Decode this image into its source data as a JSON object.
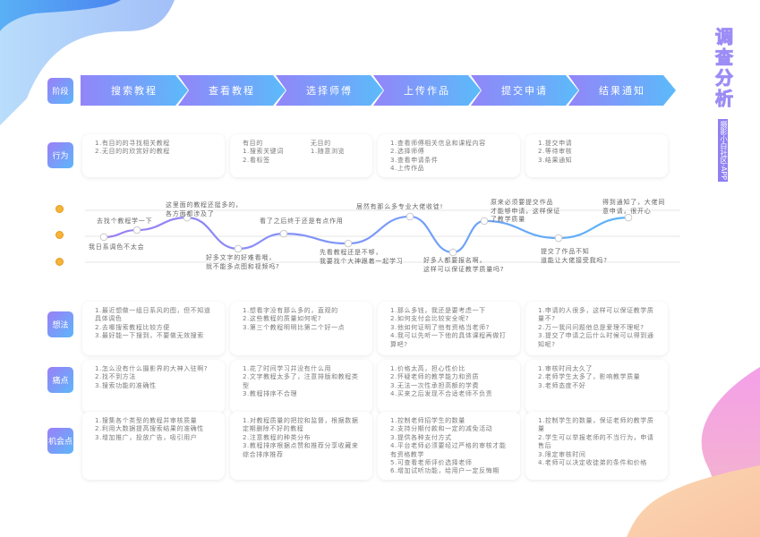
{
  "title": {
    "main": "调查分析",
    "sub": "摄影小白社区-APP"
  },
  "row_labels": {
    "stage": "阶段",
    "behavior": "行为",
    "thoughts": "想法",
    "pain": "痛点",
    "opportunity": "机会点"
  },
  "stages": [
    "搜索教程",
    "查看教程",
    "选择师傅",
    "上传作品",
    "提交申请",
    "结果通知"
  ],
  "behavior": [
    {
      "items": [
        "1.有目的的寻找相关教程",
        "2.无目的的欣赏好的教程"
      ]
    },
    {
      "columns": [
        {
          "items": [
            "有目的",
            "1.搜索关键词",
            "2.看标签"
          ]
        },
        {
          "items": [
            "无目的",
            "1.随意浏览"
          ]
        }
      ]
    },
    {
      "items": [
        "1.查看师傅相关信息和课程内容",
        "2.选择师傅",
        "3.查看申请条件",
        "4.上传作品"
      ]
    },
    {
      "items": [
        "1.提交申请",
        "2.等待审核",
        "3.结果通知"
      ]
    }
  ],
  "emotion": {
    "levels": [
      "happy",
      "neutral",
      "sad"
    ],
    "points": [
      {
        "score": 0.97,
        "label": "我日系调色不太会"
      },
      {
        "score": 1.24,
        "label": "去找个教程学一下"
      },
      {
        "score": 1.72,
        "label": "这里面的教程还挺多的，\n各方面都涉及了"
      },
      {
        "score": 0.52,
        "label": "好多文字的好难看哦，\n就不能多点图和视频吗?"
      },
      {
        "score": 1.1,
        "label": "看了之后终于还是有点作用"
      },
      {
        "score": 0.72,
        "label": "先看教程还是不够，\n我要找个大神跟着一起学习"
      },
      {
        "score": 1.76,
        "label": "居然有那么多专业大佬收徒!"
      },
      {
        "score": 0.38,
        "label": "好多人都要报名啊，\n这样可以保证教学质量吗?"
      },
      {
        "score": 1.59,
        "label": "原来必须要提交作品\n才能够申请，这样保证\n了教学质量"
      },
      {
        "score": 0.93,
        "label": "提交了作品不知\n道能让大佬接受我吗?"
      },
      {
        "score": 1.72,
        "label": "得到通知了，大佬同\n意申请，很开心"
      }
    ],
    "colors": {
      "start": "#9a7cf5",
      "end": "#5ab4f9"
    }
  },
  "thoughts": [
    [
      "1.最近想做一组日系风的图，但不知道具体调色",
      "2.去哪搜索教程比较方便",
      "3.最好能一下搜到，不要做无效搜索"
    ],
    [
      "1.想看字没有那么多的，直观的",
      "2.这些教程的质量如何呢?",
      "3.第三个教程明明比第二个好一点"
    ],
    [
      "1.那么多钱，我还是要考虑一下",
      "2.如何支付会比较安全呢?",
      "3.他如何证明了他有资格当老师?",
      "4.我可以先听一下他的具体课程再做打算吧?"
    ],
    [
      "1.申请的人很多，这样可以保证教学质量不?",
      "2.万一我问问题他总是爱理不理呢?",
      "3.提交了申请之后什么时候可以得到通知呢?"
    ]
  ],
  "pain": [
    [
      "1.怎么没有什么摄影界的大神入驻啊?",
      "2.找不到方法",
      "3.搜索功能的准确性"
    ],
    [
      "1.花了时间学习并没有什么用",
      "2.文字教程太多了，注意排版和教程类型",
      "3.教程排序不合理"
    ],
    [
      "1.价格太高，担心性价比",
      "2.怀疑老师的教学能力和资质",
      "3.无法一次性承担高额的学费",
      "4.买来之后发现不合适老师不负责"
    ],
    [
      "1.审核时间太久了",
      "2.老师学生太多了，影响教学质量",
      "3.老师态度不好"
    ]
  ],
  "opportunity": [
    [
      "1.搜集各个类型的教程并审核质量",
      "2.利用大数据提高搜索结果的准确性",
      "3.增加推广，投放广告，吸引用户"
    ],
    [
      "1.对教程质量的把控和监督，根据数据定期删除不好的教程",
      "2.注意教程的种类分布",
      "3.教程排序根据点赞和推荐分享收藏来综合排序推荐"
    ],
    [
      "1.控制老师招学生的数量",
      "2.支持分期付款和一定的减免活动",
      "3.提供各种支付方式",
      "4.平台老师必须要经过严格的审核才能有资格教学",
      "5.可查看老师评价选择老师",
      "6.增加试听功能，给用户一定反悔期"
    ],
    [
      "1.控制学生的数量，保证老师的教学质量",
      "2.学生可以举报老师的不当行为，申请售后",
      "3.限定审核时间",
      "4.老师可以决定收徒弟的条件和价格"
    ]
  ]
}
